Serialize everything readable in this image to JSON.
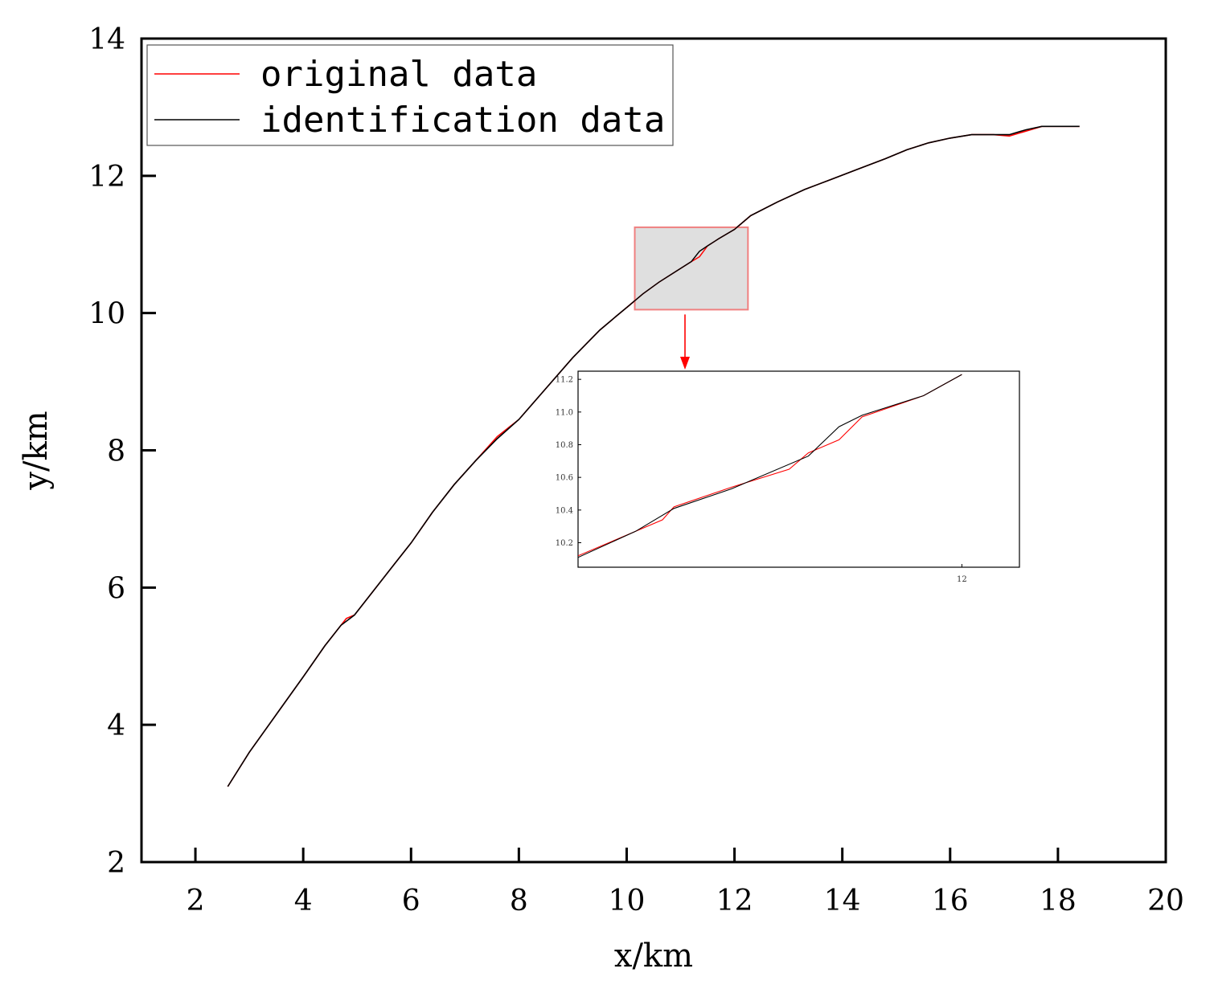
{
  "chart_data": {
    "type": "line",
    "xlabel": "x/km",
    "ylabel": "y/km",
    "xlim": [
      1,
      20
    ],
    "ylim": [
      2,
      14
    ],
    "xticks": [
      2,
      4,
      6,
      8,
      10,
      12,
      14,
      16,
      18,
      20
    ],
    "yticks": [
      2,
      4,
      6,
      8,
      10,
      12,
      14
    ],
    "grid": false,
    "legend_position": "top-left",
    "series": [
      {
        "name": "original data",
        "color": "#ff0000",
        "points": [
          [
            2.6,
            3.1
          ],
          [
            3.0,
            3.6
          ],
          [
            3.5,
            4.15
          ],
          [
            4.0,
            4.7
          ],
          [
            4.4,
            5.15
          ],
          [
            4.8,
            5.55
          ],
          [
            4.95,
            5.6
          ],
          [
            5.3,
            5.95
          ],
          [
            5.7,
            6.35
          ],
          [
            6.0,
            6.65
          ],
          [
            6.4,
            7.1
          ],
          [
            6.8,
            7.5
          ],
          [
            7.2,
            7.85
          ],
          [
            7.6,
            8.2
          ],
          [
            8.0,
            8.45
          ],
          [
            8.5,
            8.9
          ],
          [
            9.0,
            9.35
          ],
          [
            9.5,
            9.75
          ],
          [
            9.8,
            9.95
          ],
          [
            10.0,
            10.08
          ],
          [
            10.3,
            10.28
          ],
          [
            10.6,
            10.45
          ],
          [
            10.9,
            10.6
          ],
          [
            11.2,
            10.75
          ],
          [
            11.35,
            10.82
          ],
          [
            11.5,
            10.98
          ],
          [
            11.7,
            11.08
          ],
          [
            12.0,
            11.22
          ],
          [
            12.3,
            11.42
          ],
          [
            12.8,
            11.62
          ],
          [
            13.3,
            11.8
          ],
          [
            13.8,
            11.95
          ],
          [
            14.3,
            12.1
          ],
          [
            14.8,
            12.25
          ],
          [
            15.2,
            12.38
          ],
          [
            15.6,
            12.48
          ],
          [
            16.0,
            12.55
          ],
          [
            16.4,
            12.6
          ],
          [
            16.8,
            12.6
          ],
          [
            17.1,
            12.58
          ],
          [
            17.4,
            12.65
          ],
          [
            17.7,
            12.72
          ],
          [
            18.0,
            12.72
          ],
          [
            18.4,
            12.72
          ]
        ]
      },
      {
        "name": "identification data",
        "color": "#000000",
        "points": [
          [
            2.6,
            3.1
          ],
          [
            3.0,
            3.6
          ],
          [
            3.5,
            4.15
          ],
          [
            4.0,
            4.7
          ],
          [
            4.4,
            5.15
          ],
          [
            4.7,
            5.45
          ],
          [
            4.95,
            5.6
          ],
          [
            5.3,
            5.95
          ],
          [
            5.7,
            6.35
          ],
          [
            6.0,
            6.65
          ],
          [
            6.4,
            7.1
          ],
          [
            6.8,
            7.5
          ],
          [
            7.2,
            7.85
          ],
          [
            7.6,
            8.17
          ],
          [
            8.0,
            8.45
          ],
          [
            8.5,
            8.9
          ],
          [
            9.0,
            9.35
          ],
          [
            9.5,
            9.75
          ],
          [
            9.8,
            9.95
          ],
          [
            10.0,
            10.08
          ],
          [
            10.3,
            10.28
          ],
          [
            10.6,
            10.45
          ],
          [
            10.9,
            10.6
          ],
          [
            11.2,
            10.75
          ],
          [
            11.35,
            10.9
          ],
          [
            11.5,
            10.98
          ],
          [
            11.7,
            11.08
          ],
          [
            12.0,
            11.22
          ],
          [
            12.3,
            11.42
          ],
          [
            12.8,
            11.62
          ],
          [
            13.3,
            11.8
          ],
          [
            13.8,
            11.95
          ],
          [
            14.3,
            12.1
          ],
          [
            14.8,
            12.25
          ],
          [
            15.2,
            12.38
          ],
          [
            15.6,
            12.48
          ],
          [
            16.0,
            12.55
          ],
          [
            16.4,
            12.6
          ],
          [
            16.8,
            12.6
          ],
          [
            17.1,
            12.6
          ],
          [
            17.4,
            12.67
          ],
          [
            17.7,
            12.72
          ],
          [
            18.0,
            12.72
          ],
          [
            18.4,
            12.72
          ]
        ]
      }
    ],
    "highlight_box": {
      "x": [
        10.15,
        12.25
      ],
      "y": [
        10.05,
        11.25
      ],
      "fill": "#d9d9d9",
      "stroke": "#f08080"
    },
    "inset": {
      "xlim": [
        11.0,
        12.15
      ],
      "ylim": [
        10.05,
        11.25
      ],
      "xticks": [
        12
      ],
      "yticks": [
        10.2,
        10.4,
        10.6,
        10.8,
        11.0,
        11.2
      ],
      "ytick_labels": [
        "10.2",
        "10.4",
        "10.6",
        "10.8",
        "11.0",
        "11.2"
      ],
      "xtick_labels": [
        "12"
      ],
      "series": [
        {
          "color": "#ff0000",
          "points": [
            [
              11.0,
              10.12
            ],
            [
              11.15,
              10.27
            ],
            [
              11.22,
              10.34
            ],
            [
              11.25,
              10.42
            ],
            [
              11.4,
              10.54
            ],
            [
              11.55,
              10.65
            ],
            [
              11.6,
              10.75
            ],
            [
              11.68,
              10.83
            ],
            [
              11.74,
              10.97
            ],
            [
              11.9,
              11.1
            ],
            [
              12.0,
              11.23
            ]
          ]
        },
        {
          "color": "#000000",
          "points": [
            [
              11.0,
              10.11
            ],
            [
              11.15,
              10.27
            ],
            [
              11.25,
              10.41
            ],
            [
              11.4,
              10.53
            ],
            [
              11.6,
              10.73
            ],
            [
              11.68,
              10.91
            ],
            [
              11.74,
              10.98
            ],
            [
              11.9,
              11.1
            ],
            [
              12.0,
              11.23
            ]
          ]
        }
      ]
    }
  }
}
